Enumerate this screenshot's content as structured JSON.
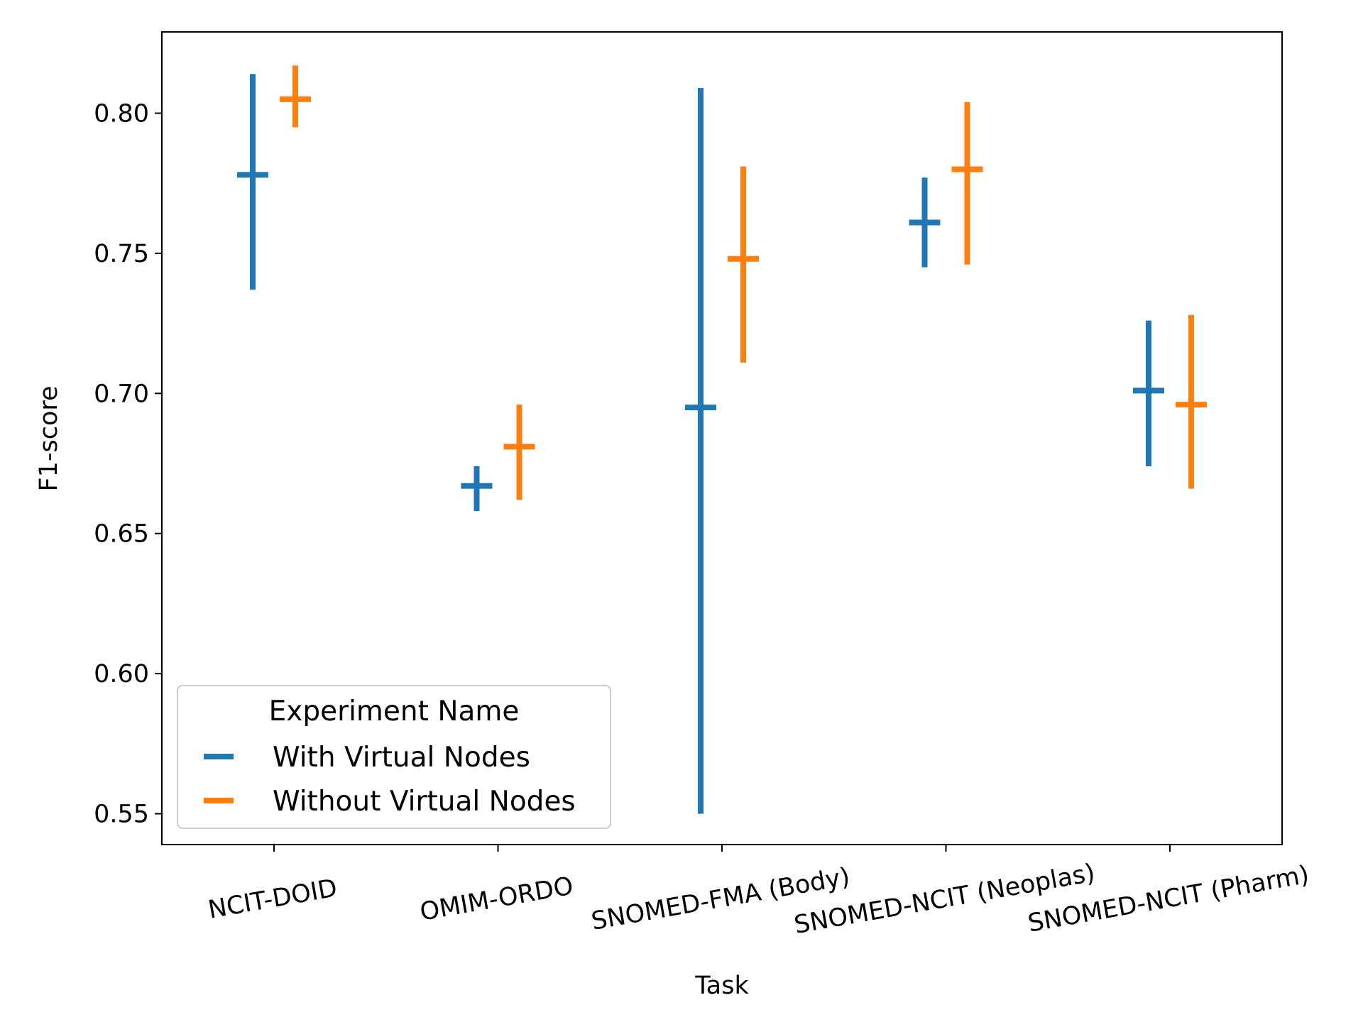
{
  "chart_data": {
    "type": "errorbar",
    "title": "",
    "xlabel": "Task",
    "ylabel": "F1-score",
    "categories": [
      "NCIT-DOID",
      "OMIM-ORDO",
      "SNOMED-FMA (Body)",
      "SNOMED-NCIT (Neoplas)",
      "SNOMED-NCIT (Pharm)"
    ],
    "ylim": [
      0.539,
      0.829
    ],
    "yticks": [
      "0.55",
      "0.60",
      "0.65",
      "0.70",
      "0.75",
      "0.80"
    ],
    "grid": false,
    "legend": {
      "title": "Experiment Name",
      "placement": "lower-left"
    },
    "series": [
      {
        "name": "With Virtual Nodes",
        "color": "#1f77b4",
        "means": [
          0.778,
          0.667,
          0.695,
          0.761,
          0.701
        ],
        "lower": [
          0.737,
          0.658,
          0.55,
          0.745,
          0.674
        ],
        "upper": [
          0.814,
          0.674,
          0.809,
          0.777,
          0.726
        ]
      },
      {
        "name": "Without Virtual Nodes",
        "color": "#ff7f0e",
        "means": [
          0.805,
          0.681,
          0.748,
          0.78,
          0.696
        ],
        "lower": [
          0.795,
          0.662,
          0.711,
          0.746,
          0.666
        ],
        "upper": [
          0.817,
          0.696,
          0.781,
          0.804,
          0.728
        ]
      }
    ]
  }
}
